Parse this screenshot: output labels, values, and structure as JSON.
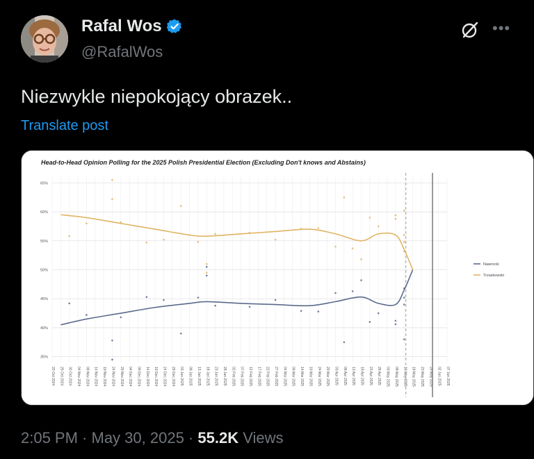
{
  "author": {
    "name": "Rafal Wos",
    "handle": "@RafalWos",
    "verified_color": "#1d9bf0"
  },
  "icons": [
    "verified-badge-icon",
    "grok-icon",
    "more-icon"
  ],
  "post": {
    "text": "Niezwykle niepokojący obrazek..",
    "translate_label": "Translate post"
  },
  "meta": {
    "time": "2:05 PM",
    "sep1": " · ",
    "date": "May 30, 2025",
    "sep2": " · ",
    "views_count": "55.2K",
    "views_label": " Views"
  },
  "colors": {
    "accent": "#1d9bf0",
    "nawrocki": "#5a6a8c",
    "trzaskowski": "#e0b463"
  },
  "chart_data": {
    "type": "line",
    "title": "Head-to-Head Opinion Polling for the 2025 Polish Presidential Election (Excluding Don't knows and Abstains)",
    "y_ticks": [
      "65%",
      "60%",
      "55%",
      "50%",
      "45%",
      "40%",
      "35%"
    ],
    "ylim": [
      34,
      66
    ],
    "x_ticks": [
      "20 Oct 2024",
      "25 Oct 2024",
      "30 Oct 2024",
      "04 Nov 2024",
      "09 Nov 2024",
      "14 Nov 2024",
      "19 Nov 2024",
      "24 Nov 2024",
      "29 Nov 2024",
      "04 Dec 2024",
      "09 Dec 2024",
      "14 Dec 2024",
      "19 Dec 2024",
      "24 Dec 2024",
      "29 Dec 2024",
      "03 Jan 2025",
      "08 Jan 2025",
      "13 Jan 2025",
      "18 Jan 2025",
      "23 Jan 2025",
      "28 Jan 2025",
      "02 Feb 2025",
      "07 Feb 2025",
      "12 Feb 2025",
      "17 Feb 2025",
      "22 Feb 2025",
      "27 Feb 2025",
      "04 Mar 2025",
      "09 Mar 2025",
      "14 Mar 2025",
      "19 Mar 2025",
      "24 Mar 2025",
      "29 Mar 2025",
      "03 Apr 2025",
      "08 Apr 2025",
      "13 Apr 2025",
      "18 Apr 2025",
      "23 Apr 2025",
      "28 Apr 2025",
      "03 May 2025",
      "08 May 2025",
      "13 May 2025",
      "18 May 2025",
      "23 May 2025",
      "28 May 2025",
      "02 Jun 2025",
      "07 Jun 2025"
    ],
    "legend_position": "right",
    "series": [
      {
        "name": "Nawrocki",
        "color": "#5a6a8c",
        "points": [
          [
            1,
            40.5
          ],
          [
            4,
            41.5
          ],
          [
            8,
            42.5
          ],
          [
            12,
            43.5
          ],
          [
            16,
            44.2
          ],
          [
            18,
            44.5
          ],
          [
            22,
            44.2
          ],
          [
            26,
            44.0
          ],
          [
            30,
            43.8
          ],
          [
            33,
            44.5
          ],
          [
            36,
            45.3
          ],
          [
            38,
            44.2
          ],
          [
            40,
            44.0
          ],
          [
            41,
            46.5
          ],
          [
            42,
            50.0
          ]
        ],
        "polls": [
          [
            2,
            44.2
          ],
          [
            4,
            42.2
          ],
          [
            7,
            37.8
          ],
          [
            7,
            34.5
          ],
          [
            8,
            41.8
          ],
          [
            11,
            45.3
          ],
          [
            13,
            44.8
          ],
          [
            15,
            39.0
          ],
          [
            17,
            45.2
          ],
          [
            18,
            50.5
          ],
          [
            18,
            49.0
          ],
          [
            19,
            43.8
          ],
          [
            23,
            43.6
          ],
          [
            26,
            44.8
          ],
          [
            29,
            42.9
          ],
          [
            31,
            42.8
          ],
          [
            33,
            46.0
          ],
          [
            34,
            37.5
          ],
          [
            35,
            46.3
          ],
          [
            36,
            48.2
          ],
          [
            37,
            41.0
          ],
          [
            38,
            42.5
          ],
          [
            40,
            40.6
          ],
          [
            40,
            41.2
          ],
          [
            41,
            38.0
          ],
          [
            41,
            44.0
          ],
          [
            41,
            45.2
          ],
          [
            41,
            46.8
          ]
        ]
      },
      {
        "name": "Trzaskowski",
        "color": "#e0b463",
        "points": [
          [
            1,
            59.5
          ],
          [
            4,
            59.0
          ],
          [
            8,
            58.0
          ],
          [
            12,
            57.0
          ],
          [
            16,
            56.0
          ],
          [
            18,
            55.8
          ],
          [
            22,
            56.2
          ],
          [
            26,
            56.6
          ],
          [
            30,
            57.0
          ],
          [
            33,
            56.2
          ],
          [
            36,
            55.0
          ],
          [
            38,
            56.2
          ],
          [
            40,
            56.0
          ],
          [
            41,
            53.5
          ],
          [
            42,
            50.0
          ]
        ],
        "polls": [
          [
            2,
            55.8
          ],
          [
            4,
            58.0
          ],
          [
            7,
            65.5
          ],
          [
            7,
            62.2
          ],
          [
            8,
            58.2
          ],
          [
            11,
            54.7
          ],
          [
            13,
            55.2
          ],
          [
            15,
            61.0
          ],
          [
            17,
            54.8
          ],
          [
            18,
            49.5
          ],
          [
            18,
            51.0
          ],
          [
            19,
            56.2
          ],
          [
            23,
            56.4
          ],
          [
            26,
            55.2
          ],
          [
            29,
            57.1
          ],
          [
            31,
            57.2
          ],
          [
            33,
            54.0
          ],
          [
            34,
            62.5
          ],
          [
            35,
            53.7
          ],
          [
            36,
            51.8
          ],
          [
            37,
            59.0
          ],
          [
            38,
            57.5
          ],
          [
            40,
            59.4
          ],
          [
            40,
            58.8
          ],
          [
            41,
            60.2
          ],
          [
            41,
            56.0
          ],
          [
            41,
            54.8
          ],
          [
            41,
            53.2
          ]
        ]
      }
    ],
    "markers": {
      "dashed_vertical_x": 41.2,
      "solid_vertical_x": 44.3
    }
  }
}
